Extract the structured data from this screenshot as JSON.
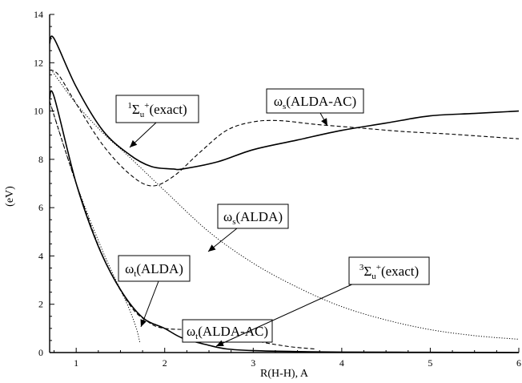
{
  "chart_data": {
    "type": "line",
    "xlabel": "R(H-H), A",
    "ylabel": "(eV)",
    "xlim": [
      0.7,
      6
    ],
    "ylim": [
      0,
      14
    ],
    "xticks": [
      1,
      2,
      3,
      4,
      5,
      6
    ],
    "yticks": [
      0,
      2,
      4,
      6,
      8,
      10,
      12,
      14
    ],
    "grid": false,
    "series": [
      {
        "name": "singlet-exact",
        "style": "solid",
        "x": [
          0.7,
          0.75,
          1.0,
          1.3,
          1.6,
          1.85,
          2.1,
          2.2,
          2.6,
          3.0,
          3.5,
          4.0,
          4.5,
          5.0,
          5.5,
          6.0
        ],
        "y": [
          12.8,
          13.0,
          11.0,
          9.2,
          8.2,
          7.7,
          7.6,
          7.6,
          7.9,
          8.4,
          8.8,
          9.2,
          9.5,
          9.8,
          9.9,
          10.0
        ]
      },
      {
        "name": "omega-s-alda-ac",
        "style": "dashed",
        "x": [
          0.7,
          0.8,
          1.0,
          1.3,
          1.6,
          1.85,
          2.1,
          2.4,
          2.7,
          3.0,
          3.3,
          3.7,
          4.2,
          4.7,
          5.2,
          5.6,
          6.0
        ],
        "y": [
          11.7,
          11.5,
          10.3,
          8.6,
          7.4,
          6.9,
          7.3,
          8.3,
          9.2,
          9.55,
          9.6,
          9.45,
          9.3,
          9.15,
          9.05,
          8.95,
          8.85
        ]
      },
      {
        "name": "omega-s-alda",
        "style": "dotted",
        "x": [
          0.7,
          1.0,
          1.3,
          1.6,
          2.0,
          2.5,
          3.0,
          3.5,
          4.0,
          4.5,
          5.0,
          5.5,
          6.0
        ],
        "y": [
          11.8,
          10.3,
          9.1,
          8.1,
          6.7,
          5.0,
          3.7,
          2.7,
          1.9,
          1.35,
          0.95,
          0.7,
          0.55
        ]
      },
      {
        "name": "triplet-exact",
        "style": "solid",
        "x": [
          0.7,
          0.75,
          1.0,
          1.25,
          1.5,
          1.75,
          2.0,
          2.2,
          2.5,
          2.7,
          3.0,
          3.5,
          4.0,
          5.0,
          6.0
        ],
        "y": [
          10.5,
          10.6,
          7.0,
          4.4,
          2.6,
          1.45,
          1.0,
          0.6,
          0.3,
          0.15,
          0.08,
          0.04,
          0.02,
          0.01,
          0.0
        ]
      },
      {
        "name": "omega-t-alda-ac",
        "style": "dashed",
        "x": [
          0.7,
          1.0,
          1.3,
          1.6,
          1.8,
          2.0,
          2.5,
          3.0,
          3.4,
          3.7
        ],
        "y": [
          10.4,
          7.0,
          4.0,
          2.0,
          1.3,
          1.0,
          0.9,
          0.5,
          0.25,
          0.15
        ]
      },
      {
        "name": "omega-t-alda",
        "style": "dotted",
        "x": [
          0.7,
          1.0,
          1.3,
          1.5,
          1.6,
          1.68,
          1.72
        ],
        "y": [
          10.4,
          7.0,
          4.2,
          2.6,
          1.8,
          1.0,
          0.4
        ]
      }
    ],
    "annotations": [
      {
        "id": "singlet-exact",
        "main": "",
        "sup_pre": "1",
        "sym": "Σ",
        "sub": "u",
        "sup": "+",
        "tail": "(exact)"
      },
      {
        "id": "omega-s-alda-ac",
        "main": "ω",
        "sub": "s",
        "tail": "(ALDA-AC)"
      },
      {
        "id": "omega-s-alda",
        "main": "ω",
        "sub": "s",
        "tail": "(ALDA)"
      },
      {
        "id": "omega-t-alda",
        "main": "ω",
        "sub": "t",
        "tail": "(ALDA)"
      },
      {
        "id": "omega-t-alda-ac",
        "main": "ω",
        "sub": "t",
        "tail": "(ALDA-AC)"
      },
      {
        "id": "triplet-exact",
        "main": "",
        "sup_pre": "3",
        "sym": "Σ",
        "sub": "u",
        "sup": "+",
        "tail": "(exact)"
      }
    ]
  }
}
